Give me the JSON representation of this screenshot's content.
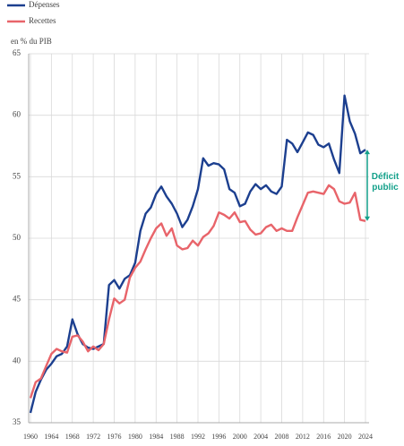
{
  "chart_data": {
    "type": "line",
    "y_label": "en % du PIB",
    "annotation": "Déficit public",
    "annotation_color": "#13a08a",
    "x": [
      1960,
      1961,
      1962,
      1963,
      1964,
      1965,
      1966,
      1967,
      1968,
      1969,
      1970,
      1971,
      1972,
      1973,
      1974,
      1975,
      1976,
      1977,
      1978,
      1979,
      1980,
      1981,
      1982,
      1983,
      1984,
      1985,
      1986,
      1987,
      1988,
      1989,
      1990,
      1991,
      1992,
      1993,
      1994,
      1995,
      1996,
      1997,
      1998,
      1999,
      2000,
      2001,
      2002,
      2003,
      2004,
      2005,
      2006,
      2007,
      2008,
      2009,
      2010,
      2011,
      2012,
      2013,
      2014,
      2015,
      2016,
      2017,
      2018,
      2019,
      2020,
      2021,
      2022,
      2023,
      2024
    ],
    "series": [
      {
        "name": "Dépenses",
        "color": "#1c3f8f",
        "values": [
          35.8,
          37.5,
          38.5,
          39.3,
          39.8,
          40.4,
          40.6,
          41.2,
          43.4,
          42.2,
          41.4,
          41.1,
          41.0,
          41.2,
          41.4,
          46.2,
          46.6,
          45.9,
          46.7,
          47.0,
          48.0,
          50.6,
          52.0,
          52.5,
          53.6,
          54.2,
          53.4,
          52.8,
          52.0,
          50.9,
          51.5,
          52.6,
          54.0,
          56.5,
          55.9,
          56.1,
          56.0,
          55.6,
          54.0,
          53.7,
          52.6,
          52.8,
          53.8,
          54.4,
          54.0,
          54.3,
          53.8,
          53.6,
          54.2,
          58.0,
          57.7,
          57.0,
          57.8,
          58.6,
          58.4,
          57.6,
          57.4,
          57.7,
          56.4,
          55.3,
          61.6,
          59.5,
          58.5,
          56.9,
          57.2
        ]
      },
      {
        "name": "Recettes",
        "color": "#e8646a",
        "values": [
          37.0,
          38.3,
          38.6,
          39.6,
          40.6,
          41.0,
          40.8,
          40.7,
          42.0,
          42.1,
          41.6,
          40.8,
          41.2,
          40.9,
          41.4,
          43.4,
          45.1,
          44.7,
          45.0,
          46.8,
          47.6,
          48.1,
          49.1,
          50.0,
          50.8,
          51.2,
          50.2,
          50.8,
          49.4,
          49.1,
          49.2,
          49.8,
          49.4,
          50.1,
          50.4,
          51.0,
          52.1,
          51.9,
          51.6,
          52.1,
          51.3,
          51.4,
          50.7,
          50.3,
          50.4,
          50.9,
          51.1,
          50.6,
          50.8,
          50.6,
          50.6,
          51.7,
          52.7,
          53.7,
          53.8,
          53.7,
          53.6,
          54.3,
          54.0,
          53.0,
          52.8,
          52.9,
          53.7,
          51.5,
          51.4
        ]
      }
    ],
    "xlim": [
      1960,
      2024
    ],
    "xticks": [
      1960,
      1964,
      1968,
      1972,
      1976,
      1980,
      1984,
      1988,
      1992,
      1996,
      2000,
      2004,
      2008,
      2012,
      2016,
      2020,
      2024
    ],
    "ylim": [
      35,
      65
    ],
    "yticks": [
      35,
      40,
      45,
      50,
      55,
      60,
      65
    ],
    "grid": true,
    "legend": "top-left"
  }
}
